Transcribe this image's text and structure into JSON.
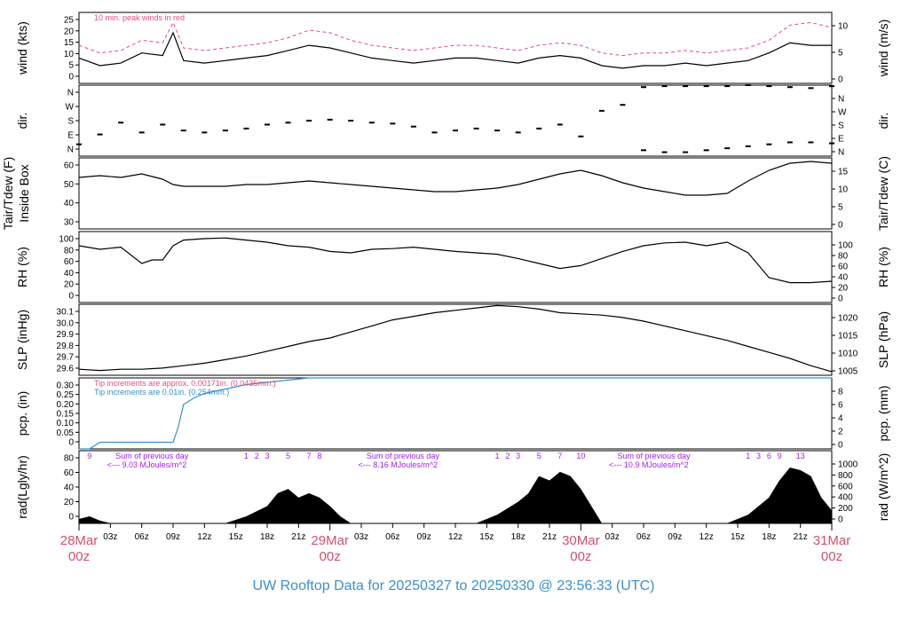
{
  "title": "UW Rooftop Data for 20250327  to  20250330 @ 23:56:33  (UTC)",
  "colors": {
    "axis": "#000000",
    "peak": "#e0507a",
    "day_label": "#d05070",
    "title": "#3a8fd0",
    "purple": "#a020f0",
    "blue": "#3a8fd0"
  },
  "x_axis": {
    "hour_ticks": [
      "03z",
      "06z",
      "09z",
      "12z",
      "15z",
      "18z",
      "21z",
      "03z",
      "06z",
      "09z",
      "12z",
      "15z",
      "18z",
      "21z",
      "03z",
      "06z",
      "09z",
      "12z",
      "15z",
      "18z",
      "21z"
    ],
    "day_labels": [
      {
        "date": "28Mar",
        "zone": "00z"
      },
      {
        "date": "29Mar",
        "zone": "00z"
      },
      {
        "date": "30Mar",
        "zone": "00z"
      },
      {
        "date": "31Mar",
        "zone": "00z"
      }
    ]
  },
  "chart_data": [
    {
      "type": "line",
      "name": "wind",
      "ylabel_left": "wind (kts)",
      "ylabel_right": "wind (m/s)",
      "left_ticks": [
        "0",
        "5",
        "10",
        "15",
        "20",
        "25"
      ],
      "right_ticks": [
        "0",
        "5",
        "10"
      ],
      "ylim": [
        0,
        28
      ],
      "annotation": "10 min. peak winds in red",
      "x_hours": [
        0,
        2,
        4,
        6,
        8,
        9,
        10,
        12,
        14,
        16,
        18,
        20,
        22,
        24,
        26,
        28,
        30,
        32,
        34,
        36,
        38,
        40,
        42,
        44,
        46,
        48,
        50,
        52,
        54,
        56,
        58,
        60,
        62,
        64,
        66,
        68,
        70,
        72
      ],
      "series": [
        {
          "values": [
            10,
            7,
            8,
            12,
            11,
            20,
            9,
            8,
            9,
            10,
            11,
            13,
            15,
            14,
            12,
            10,
            9,
            8,
            9,
            10,
            10,
            9,
            8,
            10,
            11,
            10,
            7,
            6,
            7,
            7,
            8,
            7,
            8,
            9,
            12,
            16,
            15,
            15
          ]
        },
        {
          "values": [
            15,
            12,
            13,
            17,
            16,
            24,
            14,
            13,
            14,
            15,
            16,
            18,
            21,
            20,
            17,
            15,
            14,
            13,
            14,
            15,
            15,
            14,
            13,
            15,
            16,
            15,
            12,
            11,
            12,
            12,
            13,
            12,
            13,
            14,
            17,
            23,
            24,
            22
          ]
        }
      ]
    },
    {
      "type": "scatter",
      "name": "dir",
      "ylabel_left": "dir.",
      "ylabel_right": "dir.",
      "left_ticks": [
        "N",
        "E",
        "S",
        "W",
        "N"
      ],
      "right_ticks": [
        "N",
        "E",
        "S",
        "W",
        "N"
      ],
      "ylim": [
        0,
        360
      ],
      "x_hours": [
        0,
        2,
        4,
        6,
        8,
        10,
        12,
        14,
        16,
        18,
        20,
        22,
        24,
        26,
        28,
        30,
        32,
        34,
        36,
        38,
        40,
        42,
        44,
        46,
        48,
        50,
        52,
        54,
        56,
        58,
        60,
        62,
        64,
        66,
        68,
        70,
        72
      ],
      "series": [
        {
          "values": [
            60,
            110,
            170,
            120,
            160,
            130,
            120,
            130,
            140,
            160,
            170,
            180,
            185,
            180,
            170,
            165,
            150,
            120,
            130,
            140,
            130,
            120,
            140,
            160,
            100,
            230,
            260,
            350,
            355,
            355,
            355,
            355,
            360,
            355,
            350,
            345,
            355
          ]
        },
        {
          "values": [
            null,
            null,
            null,
            null,
            null,
            null,
            null,
            null,
            null,
            null,
            null,
            null,
            null,
            null,
            null,
            null,
            null,
            null,
            null,
            null,
            null,
            null,
            null,
            null,
            null,
            null,
            null,
            30,
            20,
            20,
            30,
            40,
            50,
            60,
            70,
            70,
            65
          ]
        }
      ]
    },
    {
      "type": "line",
      "name": "temperature",
      "ylabel_left": "Tair/Tdew (F)",
      "ylabel_left2": "Inside Box",
      "ylabel_right": "Tair/Tdew (C)",
      "left_ticks": [
        "30",
        "40",
        "50",
        "60"
      ],
      "right_ticks": [
        "0",
        "5",
        "10",
        "15"
      ],
      "ylim": [
        25,
        65
      ],
      "x_hours": [
        0,
        2,
        4,
        6,
        8,
        9,
        10,
        12,
        14,
        16,
        18,
        20,
        22,
        24,
        26,
        28,
        30,
        32,
        34,
        36,
        38,
        40,
        42,
        44,
        46,
        48,
        50,
        52,
        54,
        56,
        58,
        60,
        62,
        64,
        66,
        68,
        70,
        72
      ],
      "series": [
        {
          "values": [
            54,
            55,
            54,
            56,
            53,
            50,
            49,
            49,
            49,
            50,
            50,
            51,
            52,
            51,
            50,
            49,
            48,
            47,
            46,
            46,
            47,
            48,
            50,
            53,
            56,
            58,
            55,
            51,
            48,
            46,
            44,
            44,
            45,
            52,
            58,
            62,
            63,
            62
          ]
        }
      ]
    },
    {
      "type": "line",
      "name": "rh",
      "ylabel_left": "RH (%)",
      "ylabel_right": "RH (%)",
      "left_ticks": [
        "0",
        "20",
        "40",
        "60",
        "80",
        "100"
      ],
      "right_ticks": [
        "0",
        "20",
        "40",
        "60",
        "80",
        "100"
      ],
      "ylim": [
        0,
        100
      ],
      "x_hours": [
        0,
        2,
        4,
        6,
        7,
        8,
        9,
        10,
        12,
        14,
        16,
        18,
        20,
        22,
        24,
        26,
        28,
        30,
        32,
        34,
        36,
        38,
        40,
        42,
        44,
        46,
        48,
        50,
        52,
        54,
        56,
        58,
        60,
        62,
        64,
        66,
        68,
        70,
        72
      ],
      "series": [
        {
          "values": [
            80,
            75,
            78,
            55,
            60,
            60,
            80,
            88,
            90,
            91,
            88,
            85,
            80,
            78,
            72,
            70,
            75,
            76,
            78,
            75,
            72,
            70,
            68,
            62,
            55,
            48,
            52,
            62,
            72,
            80,
            84,
            85,
            80,
            85,
            70,
            35,
            28,
            28,
            30
          ]
        }
      ]
    },
    {
      "type": "line",
      "name": "slp",
      "ylabel_left": "SLP (inHg)",
      "ylabel_right": "SLP (hPa)",
      "left_ticks": [
        "29.6",
        "29.7",
        "29.8",
        "29.9",
        "30.0",
        "30.1"
      ],
      "right_ticks": [
        "1005",
        "1010",
        "1015",
        "1020"
      ],
      "ylim": [
        29.58,
        30.17
      ],
      "x_hours": [
        0,
        2,
        4,
        6,
        8,
        10,
        12,
        14,
        16,
        18,
        20,
        22,
        24,
        26,
        28,
        30,
        32,
        34,
        36,
        38,
        40,
        42,
        44,
        46,
        48,
        50,
        52,
        54,
        56,
        58,
        60,
        62,
        64,
        66,
        68,
        70,
        72
      ],
      "series": [
        {
          "values": [
            29.63,
            29.62,
            29.63,
            29.63,
            29.64,
            29.66,
            29.68,
            29.71,
            29.74,
            29.78,
            29.82,
            29.86,
            29.89,
            29.94,
            29.99,
            30.04,
            30.07,
            30.1,
            30.12,
            30.14,
            30.16,
            30.15,
            30.13,
            30.1,
            30.09,
            30.08,
            30.06,
            30.03,
            29.99,
            29.95,
            29.91,
            29.87,
            29.82,
            29.77,
            29.72,
            29.66,
            29.61
          ]
        }
      ]
    },
    {
      "type": "line",
      "name": "pcp",
      "ylabel_left": "pcp. (in)",
      "ylabel_right": "pcp. (mm)",
      "left_ticks": [
        "0",
        "0.05",
        "0.10",
        "0.15",
        "0.20",
        "0.25",
        "0.30"
      ],
      "right_ticks": [
        "0",
        "2",
        "4",
        "6",
        "8"
      ],
      "ylim": [
        0,
        0.32
      ],
      "annotation_red": "Tip increments are approx. 0.00171in. (0.0435mm.)",
      "annotation_blue": "Tip increments are 0.01in. (0.254mm.)",
      "x_hours": [
        0,
        1,
        2,
        8,
        9,
        9.5,
        10,
        11,
        12,
        14,
        16,
        18,
        20,
        22,
        24,
        72
      ],
      "series": [
        {
          "values": [
            0,
            0,
            0.03,
            0.03,
            0.03,
            0.1,
            0.2,
            0.23,
            0.25,
            0.27,
            0.29,
            0.3,
            0.31,
            0.32,
            0.32,
            0.32
          ]
        }
      ]
    },
    {
      "type": "area",
      "name": "radiation",
      "ylabel_left": "rad(Lgly/hr)",
      "ylabel_right": "rad (W/m^2)",
      "left_ticks": [
        "0",
        "20",
        "40",
        "60",
        "80"
      ],
      "right_ticks": [
        "0",
        "200",
        "400",
        "600",
        "800",
        "1000"
      ],
      "ylim": [
        0,
        85
      ],
      "x_hours": [
        0,
        1,
        2,
        3,
        14,
        16,
        18,
        19,
        20,
        21,
        22,
        23,
        24,
        25,
        26,
        38,
        40,
        42,
        43,
        44,
        45,
        46,
        47,
        48,
        49,
        50,
        62,
        64,
        66,
        67,
        68,
        69,
        70,
        71,
        72
      ],
      "series": [
        {
          "values": [
            5,
            8,
            3,
            0,
            0,
            8,
            20,
            35,
            40,
            30,
            35,
            30,
            20,
            8,
            0,
            0,
            10,
            25,
            35,
            55,
            50,
            60,
            55,
            40,
            20,
            0,
            0,
            10,
            30,
            50,
            65,
            62,
            55,
            30,
            15
          ]
        }
      ],
      "hour_digits": [
        {
          "hour": 1,
          "label": "9"
        },
        {
          "hour": 16,
          "label": "1"
        },
        {
          "hour": 17,
          "label": "2"
        },
        {
          "hour": 18,
          "label": "3"
        },
        {
          "hour": 20,
          "label": "5"
        },
        {
          "hour": 22,
          "label": "7"
        },
        {
          "hour": 23,
          "label": "8"
        },
        {
          "hour": 40,
          "label": "1"
        },
        {
          "hour": 41,
          "label": "2"
        },
        {
          "hour": 42,
          "label": "3"
        },
        {
          "hour": 44,
          "label": "5"
        },
        {
          "hour": 46,
          "label": "7"
        },
        {
          "hour": 48,
          "label": "10"
        },
        {
          "hour": 64,
          "label": "1"
        },
        {
          "hour": 65,
          "label": "3"
        },
        {
          "hour": 66,
          "label": "6"
        },
        {
          "hour": 67,
          "label": "9"
        },
        {
          "hour": 69,
          "label": "13"
        }
      ],
      "daily_sums": [
        {
          "hour": 3.5,
          "line1": "Sum of previous day",
          "line2": "<--- 9.03 MJoules/m^2"
        },
        {
          "hour": 27.5,
          "line1": "Sum of previous day",
          "line2": "<--- 8.16 MJoules/m^2"
        },
        {
          "hour": 51.5,
          "line1": "Sum of previous day",
          "line2": "<--- 10.9 MJoules/m^2"
        }
      ]
    }
  ]
}
